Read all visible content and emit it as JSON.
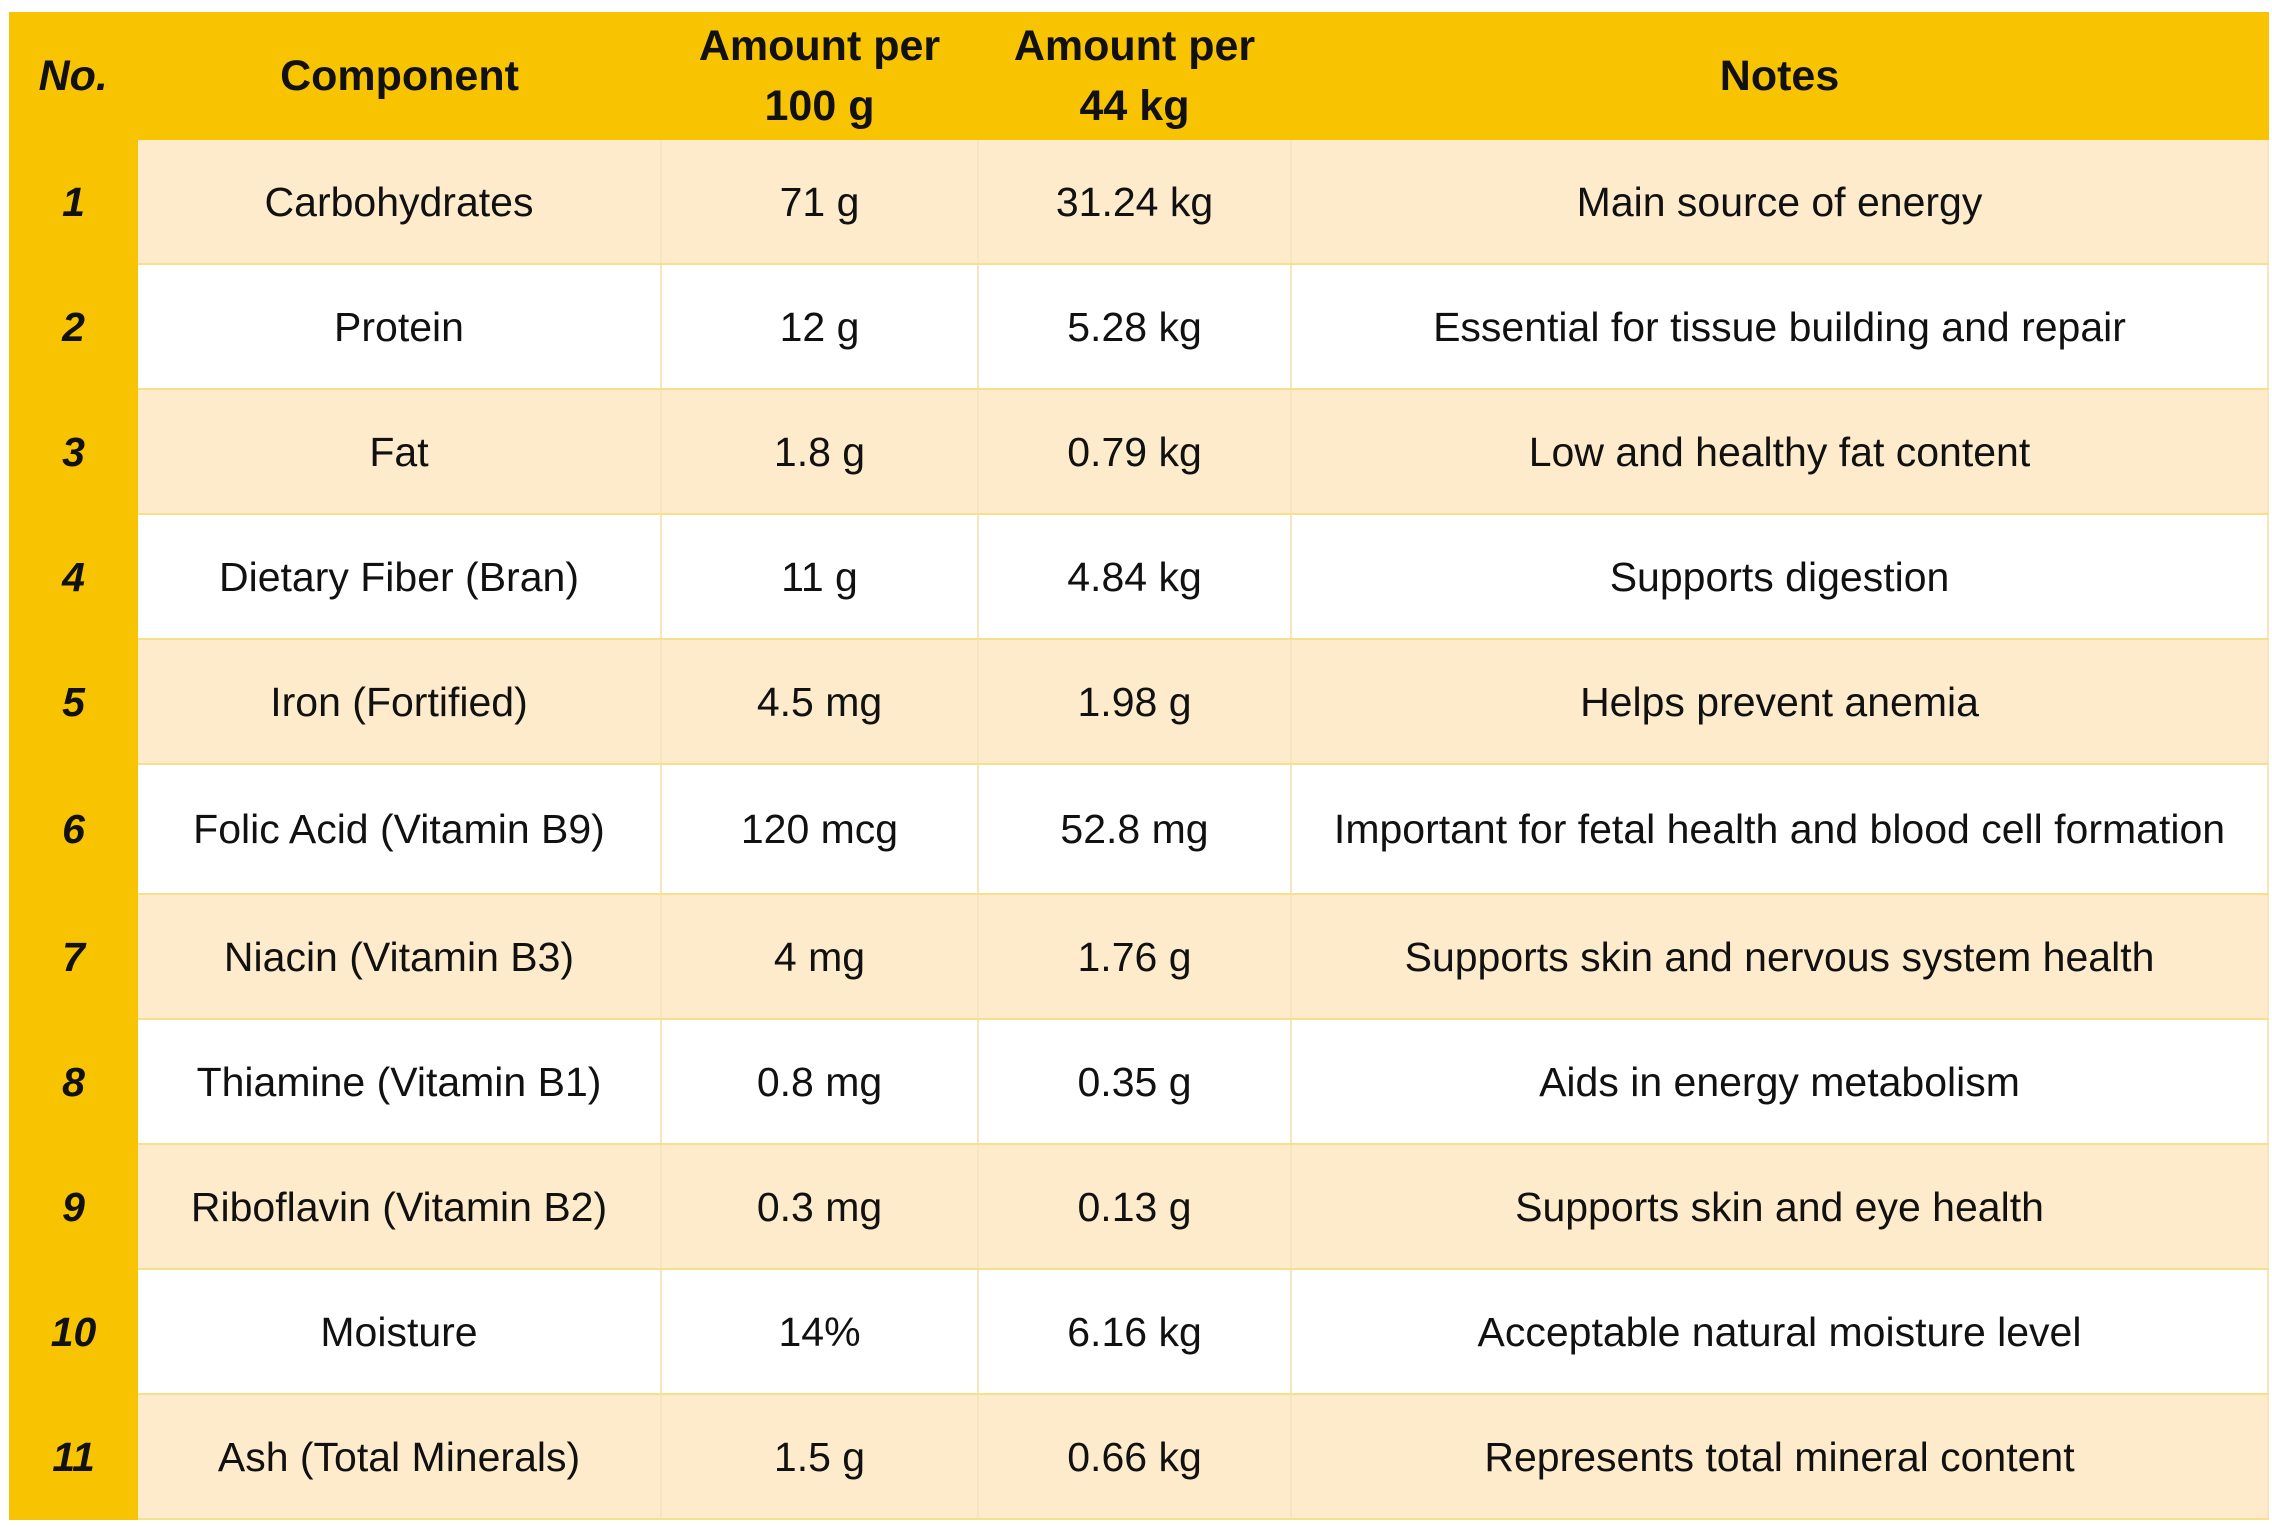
{
  "headers": [
    "No.",
    "Component",
    "Amount per 100 g",
    "Amount per 44 kg",
    "Notes"
  ],
  "rows": [
    {
      "no": "1",
      "component": "Carbohydrates",
      "per100": "71 g",
      "per44": "31.24 kg",
      "notes": "Main source of energy"
    },
    {
      "no": "2",
      "component": "Protein",
      "per100": "12 g",
      "per44": "5.28 kg",
      "notes": "Essential for tissue building and repair"
    },
    {
      "no": "3",
      "component": "Fat",
      "per100": "1.8 g",
      "per44": "0.79 kg",
      "notes": "Low and healthy fat content"
    },
    {
      "no": "4",
      "component": "Dietary Fiber (Bran)",
      "per100": "11 g",
      "per44": "4.84 kg",
      "notes": "Supports digestion"
    },
    {
      "no": "5",
      "component": "Iron (Fortified)",
      "per100": "4.5 mg",
      "per44": "1.98 g",
      "notes": "Helps prevent anemia"
    },
    {
      "no": "6",
      "component": "Folic Acid (Vitamin B9)",
      "per100": "120 mcg",
      "per44": "52.8 mg",
      "notes": "Important for fetal health and blood cell formation"
    },
    {
      "no": "7",
      "component": "Niacin (Vitamin B3)",
      "per100": "4 mg",
      "per44": "1.76 g",
      "notes": "Supports skin and nervous system health"
    },
    {
      "no": "8",
      "component": "Thiamine (Vitamin B1)",
      "per100": "0.8 mg",
      "per44": "0.35 g",
      "notes": "Aids in energy metabolism"
    },
    {
      "no": "9",
      "component": "Riboflavin (Vitamin B2)",
      "per100": "0.3 mg",
      "per44": "0.13 g",
      "notes": "Supports skin and eye health"
    },
    {
      "no": "10",
      "component": "Moisture",
      "per100": "14%",
      "per44": "6.16 kg",
      "notes": "Acceptable natural moisture level"
    },
    {
      "no": "11",
      "component": "Ash (Total Minerals)",
      "per100": "1.5 g",
      "per44": "0.66 kg",
      "notes": "Represents total mineral content"
    }
  ],
  "colors": {
    "header": "#F8C300",
    "stripe": "#FDEBCB",
    "white": "#FFFFFF"
  }
}
